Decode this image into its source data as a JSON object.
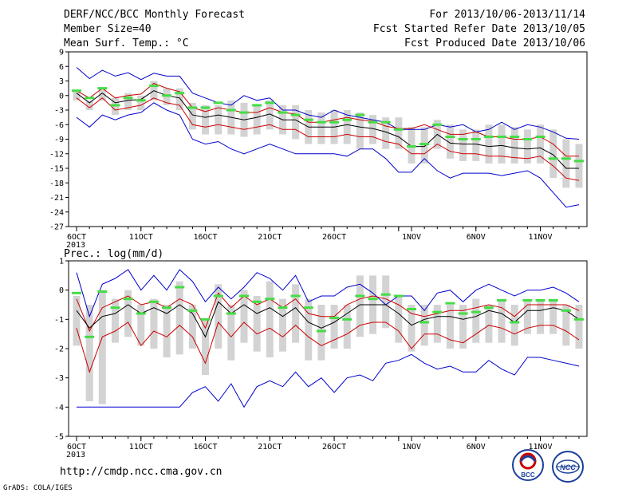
{
  "header": {
    "title": "DERF/NCC/BCC Monthly Forecast",
    "member_size": "Member Size=40",
    "variable": "Mean Surf. Temp.: °C",
    "period": "For 2013/10/06-2013/11/14",
    "fcst_started": "Fcst Started Refer Date 2013/10/05",
    "fcst_produced": "Fcst Produced Date 2013/10/06"
  },
  "footer": {
    "url": "http://cmdp.ncc.cma.gov.cn",
    "credit": "GrADS: COLA/IGES",
    "logo_bcc": "BCC",
    "logo_ncc": "NCC"
  },
  "colors": {
    "min_max": "#0000cc",
    "ensemble_mean": "#000000",
    "spread": "#cc0000",
    "box": "#d3d3d3",
    "marker": "#44dd44"
  },
  "x_axis": {
    "year_label": "2013",
    "tick_days": [
      1,
      6,
      11,
      16,
      21,
      26,
      27,
      32,
      37
    ],
    "ticks": [
      {
        "day": 1,
        "label": "6OCT"
      },
      {
        "day": 6,
        "label": "11OCT"
      },
      {
        "day": 11,
        "label": "16OCT"
      },
      {
        "day": 16,
        "label": "21OCT"
      },
      {
        "day": 21,
        "label": "26OCT"
      },
      {
        "day": 27,
        "label": "1NOV"
      },
      {
        "day": 32,
        "label": "6NOV"
      },
      {
        "day": 37,
        "label": "11NOV"
      }
    ]
  },
  "chart_data": [
    {
      "type": "line",
      "title": "Mean Surf. Temp.: °C",
      "x": [
        1,
        2,
        3,
        4,
        5,
        6,
        7,
        8,
        9,
        10,
        11,
        12,
        13,
        14,
        15,
        16,
        17,
        18,
        19,
        20,
        21,
        22,
        23,
        24,
        25,
        26,
        27,
        28,
        29,
        30,
        31,
        32,
        33,
        34,
        35,
        36,
        37,
        38,
        39,
        40
      ],
      "ylim": [
        -27,
        9
      ],
      "yticks": [
        9,
        6,
        3,
        0,
        -3,
        -6,
        -9,
        -12,
        -15,
        -18,
        -21,
        -24,
        -27
      ],
      "series": [
        {
          "key": "max",
          "values": [
            5.8,
            3.5,
            5.2,
            4,
            4.7,
            3.3,
            4.6,
            4,
            4,
            0.5,
            -0.5,
            -1.5,
            -2,
            0,
            -1,
            -0.5,
            -3,
            -3,
            -4,
            -4.5,
            -3,
            -4,
            -4.5,
            -5,
            -5.5,
            -7,
            -7,
            -7,
            -6,
            -6.5,
            -6,
            -7.5,
            -7,
            -5.5,
            -7,
            -6,
            -6.5,
            -7.5,
            -8.8,
            -9
          ]
        },
        {
          "key": "upper",
          "values": [
            1,
            -0.5,
            1.5,
            -0.5,
            0,
            0.3,
            2.5,
            1.5,
            0.8,
            -2.5,
            -3.3,
            -2.5,
            -3,
            -3.5,
            -3.5,
            -2.5,
            -3.5,
            -3.8,
            -5.5,
            -5.5,
            -5,
            -4.5,
            -5,
            -5.3,
            -6.3,
            -6.8,
            -6.8,
            -6,
            -7,
            -8,
            -8,
            -7.5,
            -8.5,
            -8.5,
            -9,
            -9,
            -8.5,
            -10,
            -12.5,
            -12.5
          ]
        },
        {
          "key": "mean",
          "values": [
            0.5,
            -1.5,
            0.5,
            -1.5,
            -1,
            -0.8,
            1,
            0,
            -0.5,
            -4,
            -4.5,
            -4,
            -4.5,
            -5,
            -4.5,
            -3.8,
            -5,
            -5,
            -6.5,
            -6.5,
            -6.5,
            -6,
            -6.5,
            -6.8,
            -7.5,
            -8.5,
            -10.5,
            -10.5,
            -8,
            -9.8,
            -10,
            -10,
            -10.5,
            -10.3,
            -10.8,
            -11,
            -10.8,
            -12.2,
            -15,
            -15
          ]
        },
        {
          "key": "lower",
          "values": [
            -0.5,
            -2.5,
            -0.5,
            -3,
            -2.5,
            -2,
            -0.5,
            -1.5,
            -2,
            -6,
            -6.5,
            -6,
            -6.5,
            -7,
            -6.5,
            -6,
            -7,
            -7,
            -8.5,
            -8.5,
            -8.5,
            -8,
            -8.5,
            -8.5,
            -9.5,
            -10,
            -12,
            -12,
            -10,
            -11.5,
            -12,
            -12,
            -12.5,
            -12.5,
            -12.8,
            -13,
            -12.5,
            -14.5,
            -17,
            -17.5
          ]
        },
        {
          "key": "min",
          "values": [
            -4.5,
            -6.5,
            -4,
            -5,
            -4,
            -3.5,
            -1.5,
            -3,
            -4,
            -9,
            -10,
            -9.5,
            -11,
            -12,
            -11,
            -10,
            -11,
            -12,
            -12,
            -12,
            -12,
            -12.5,
            -11,
            -11,
            -13,
            -15.8,
            -15.8,
            -13,
            -15.5,
            -17,
            -16,
            -16,
            -16,
            -16.5,
            -16,
            -15.5,
            -17,
            -20,
            -23,
            -22.5
          ]
        },
        {
          "key": "marker",
          "values": [
            1,
            -0.5,
            1.5,
            -2,
            -0.5,
            -1,
            2,
            0,
            0.5,
            -2.5,
            -2.5,
            -1.5,
            -3,
            -3.5,
            -2,
            -1.5,
            -3.5,
            -4,
            -5,
            -5.5,
            -5.5,
            -5,
            -4,
            -5.5,
            -5.5,
            -7,
            -10.5,
            -10,
            -6,
            -8.5,
            -9,
            -9,
            -8.5,
            -8.5,
            -8.5,
            -9,
            -8.5,
            -13,
            -13,
            -13.5
          ]
        }
      ],
      "boxes": {
        "top": [
          1,
          -1,
          1.5,
          -0.5,
          0.5,
          0,
          3,
          1.5,
          1.5,
          -1.5,
          -2,
          -2,
          -1,
          -1.5,
          -2,
          -1,
          -2,
          -2,
          -3,
          -3.5,
          -3,
          -3,
          -3.5,
          -4,
          -4.5,
          -4.5,
          -6.5,
          -6.5,
          -5,
          -6,
          -7,
          -7,
          -6,
          -6,
          -6.5,
          -7,
          -6,
          -7,
          -9,
          -10
        ],
        "bottom": [
          -1,
          -3,
          -1,
          -4,
          -3,
          -3,
          -1,
          -2,
          -3,
          -7,
          -8,
          -8,
          -8,
          -8.5,
          -8,
          -7,
          -8,
          -9,
          -10,
          -10,
          -10,
          -10,
          -11,
          -10,
          -11,
          -11,
          -14,
          -14,
          -11,
          -13,
          -13.5,
          -13.5,
          -14,
          -14,
          -14,
          -14,
          -14,
          -17,
          -19,
          -19
        ]
      }
    },
    {
      "type": "line",
      "title": "Prec.: log(mm/d)",
      "x": [
        1,
        2,
        3,
        4,
        5,
        6,
        7,
        8,
        9,
        10,
        11,
        12,
        13,
        14,
        15,
        16,
        17,
        18,
        19,
        20,
        21,
        22,
        23,
        24,
        25,
        26,
        27,
        28,
        29,
        30,
        31,
        32,
        33,
        34,
        35,
        36,
        37,
        38,
        39,
        40
      ],
      "ylim": [
        -5,
        1
      ],
      "yticks": [
        1,
        0,
        -1,
        -2,
        -3,
        -4,
        -5
      ],
      "series": [
        {
          "key": "max",
          "values": [
            0.6,
            -0.9,
            0.2,
            0.4,
            0.7,
            0,
            0.5,
            0,
            0.7,
            0.3,
            -0.4,
            0.1,
            -0.3,
            0.1,
            0.6,
            0.4,
            0,
            0.5,
            -0.4,
            -0.2,
            -0.2,
            0.1,
            0.2,
            -0.1,
            -0.5,
            -0.2,
            -0.2,
            -0.7,
            -0.1,
            0,
            -0.4,
            0,
            0.2,
            0,
            -0.2,
            0,
            0,
            0.1,
            -0.1,
            -0.4
          ]
        },
        {
          "key": "upper",
          "values": [
            -0.3,
            -1.4,
            -0.6,
            -0.4,
            -0.2,
            -0.5,
            -0.4,
            -0.6,
            -0.3,
            -0.5,
            -1.3,
            -0.1,
            -0.6,
            -0.2,
            -0.5,
            -0.3,
            -0.6,
            -0.3,
            -0.8,
            -0.9,
            -0.9,
            -0.5,
            -0.3,
            -0.2,
            -0.3,
            -0.5,
            -0.8,
            -0.9,
            -0.8,
            -0.7,
            -0.7,
            -0.6,
            -0.5,
            -0.6,
            -0.9,
            -0.5,
            -0.5,
            -0.5,
            -0.5,
            -0.7
          ]
        },
        {
          "key": "mean",
          "values": [
            -0.7,
            -1.3,
            -0.9,
            -0.8,
            -0.5,
            -0.8,
            -0.6,
            -0.8,
            -0.5,
            -0.8,
            -1.6,
            -0.4,
            -0.8,
            -0.5,
            -0.8,
            -0.6,
            -0.9,
            -0.6,
            -1.1,
            -1.3,
            -1.1,
            -0.8,
            -0.5,
            -0.5,
            -0.5,
            -0.8,
            -1.2,
            -1,
            -0.9,
            -0.9,
            -1,
            -0.9,
            -0.7,
            -0.8,
            -1.1,
            -0.7,
            -0.7,
            -0.6,
            -0.7,
            -1
          ]
        },
        {
          "key": "lower",
          "values": [
            -1.3,
            -2.8,
            -1.6,
            -1.4,
            -1.1,
            -1.9,
            -1.4,
            -1.6,
            -1.2,
            -1.6,
            -2.5,
            -1.1,
            -1.6,
            -1.1,
            -1.5,
            -1.3,
            -1.6,
            -1.2,
            -1.6,
            -1.9,
            -1.7,
            -1.5,
            -1.2,
            -1.1,
            -1.1,
            -1.4,
            -2,
            -1.5,
            -1.5,
            -1.7,
            -1.8,
            -1.5,
            -1.2,
            -1.3,
            -1.5,
            -1.3,
            -1.2,
            -1.2,
            -1.4,
            -1.7
          ]
        },
        {
          "key": "min",
          "values": [
            -4,
            -4,
            -4,
            -4,
            -4,
            -4,
            -4,
            -4,
            -4,
            -3.5,
            -3.3,
            -3.8,
            -3.2,
            -4,
            -3.3,
            -3.1,
            -3.3,
            -2.8,
            -3.3,
            -3,
            -3.5,
            -3,
            -2.9,
            -3.1,
            -2.5,
            -2.4,
            -2.2,
            -2.5,
            -2.7,
            -2.6,
            -2.8,
            -2.8,
            -2.4,
            -2.7,
            -2.9,
            -2.3,
            -2.3,
            -2.4,
            -2.5,
            -2.6
          ]
        },
        {
          "key": "marker",
          "values": [
            -0.1,
            -1.6,
            -0.05,
            -0.6,
            -0.3,
            -0.8,
            -0.4,
            -0.6,
            0.1,
            -0.7,
            -1,
            -0.2,
            -0.8,
            -0.2,
            -0.4,
            -0.3,
            -0.6,
            -0.2,
            -0.6,
            -1.4,
            -0.95,
            -1,
            -0.2,
            -0.3,
            -0.15,
            -0.2,
            -0.65,
            -1.1,
            -0.75,
            -0.45,
            -0.8,
            -0.75,
            -0.6,
            -0.35,
            -1.1,
            -0.35,
            -0.35,
            -0.35,
            -0.7,
            -1
          ]
        }
      ],
      "boxes": {
        "top": [
          -0.2,
          -0.5,
          0,
          -0.3,
          0,
          -0.5,
          -0.3,
          -0.5,
          0.3,
          -0.5,
          -1,
          0.2,
          -0.5,
          0,
          -0.2,
          0.3,
          -0.3,
          0.2,
          -0.3,
          -0.5,
          -0.5,
          -0.5,
          0.5,
          0.5,
          0.5,
          -0.2,
          -0.5,
          -0.5,
          -0.5,
          -0.5,
          -0.5,
          -0.3,
          -0.5,
          -0.3,
          -0.5,
          -0.3,
          -0.3,
          -0.3,
          -0.5,
          -0.5
        ],
        "bottom": [
          -1.9,
          -3.8,
          -3.9,
          -1.8,
          -1.6,
          -1.9,
          -2,
          -2.3,
          -2.2,
          -2,
          -2.9,
          -2,
          -2.4,
          -1.8,
          -2.1,
          -2.3,
          -2.1,
          -1.8,
          -2.4,
          -2.4,
          -2,
          -2,
          -1.6,
          -1.5,
          -1.3,
          -1.8,
          -2.1,
          -1.9,
          -1.8,
          -2,
          -2,
          -1.8,
          -1.8,
          -1.8,
          -1.9,
          -1.5,
          -1.5,
          -1.5,
          -1.9,
          -2
        ]
      }
    }
  ]
}
